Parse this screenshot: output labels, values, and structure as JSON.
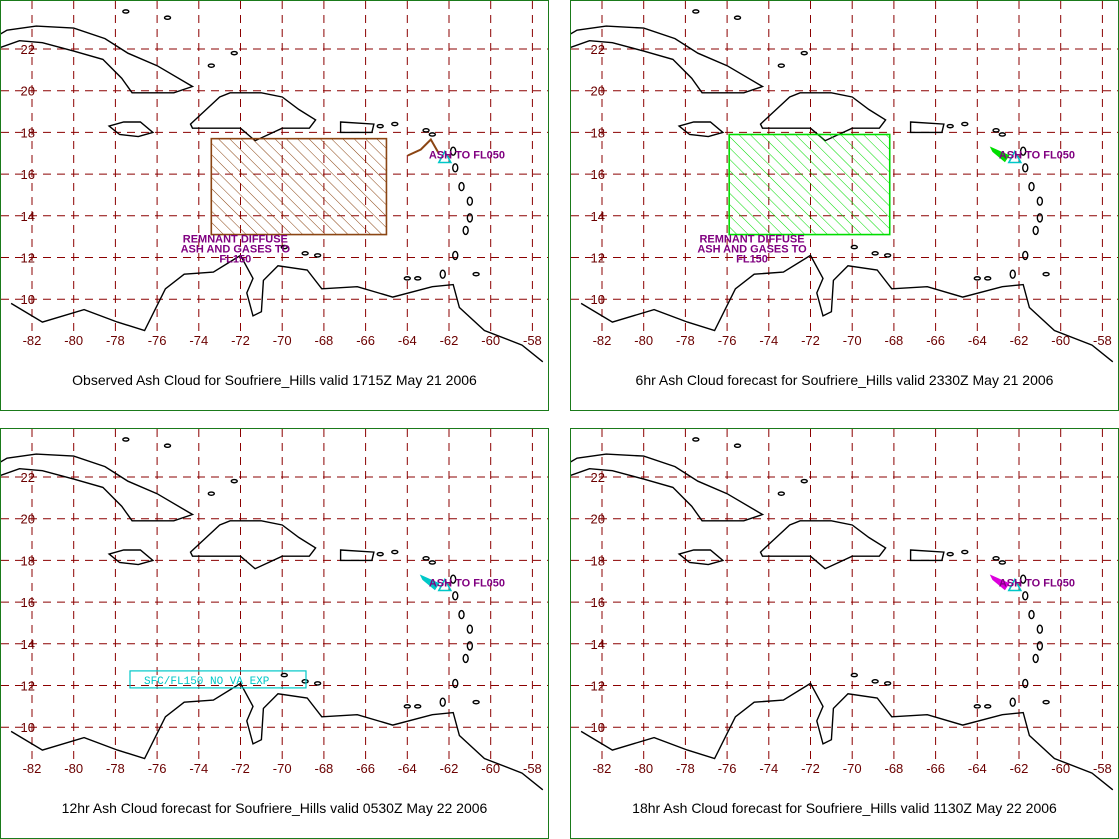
{
  "colors": {
    "panel_border": "#1a7a1a",
    "grid": "#8b0000",
    "tick_label": "#6b0000",
    "coast": "#000000",
    "label": "#800080",
    "volcano_marker": "#00c8c8",
    "observed_cloud": "#8b4513",
    "forecast_6hr_cloud": "#00dd00",
    "forecast_12hr_cloud": "#00c8c8",
    "forecast_18hr_cloud": "#dd00dd"
  },
  "axes": {
    "lon_labels": [
      "-82",
      "-80",
      "-78",
      "-76",
      "-74",
      "-72",
      "-70",
      "-68",
      "-66",
      "-64",
      "-62",
      "-60",
      "-58"
    ],
    "lat_labels": [
      "22",
      "20",
      "18",
      "16",
      "14",
      "12",
      "10"
    ]
  },
  "panels": [
    {
      "caption": "Observed Ash Cloud for Soufriere_Hills valid 1715Z May 21 2006",
      "volcano_label": "ASH TO FL050",
      "area_label": [
        "REMNANT DIFFUSE",
        "ASH AND GASES TO",
        "FL150"
      ],
      "area_box": {
        "lon": [
          -73.4,
          -65.0
        ],
        "lat": [
          13.1,
          17.7
        ]
      },
      "cloud_color_key": "observed_cloud",
      "cloud_shape": "line"
    },
    {
      "caption": "6hr Ash Cloud forecast for Soufriere_Hills valid 2330Z May 21 2006",
      "volcano_label": "ASH TO FL050",
      "area_label": [
        "REMNANT DIFFUSE",
        "ASH AND GASES TO",
        "FL150"
      ],
      "area_box": {
        "lon": [
          -75.9,
          -68.2
        ],
        "lat": [
          13.1,
          17.9
        ]
      },
      "cloud_color_key": "forecast_6hr_cloud",
      "cloud_shape": "streak"
    },
    {
      "caption": "12hr Ash Cloud forecast for Soufriere_Hills valid 0530Z May 22 2006",
      "volcano_label": "ASH TO FL050",
      "area_label": [
        "SFC/FL150 NO VA EXP"
      ],
      "cloud_color_key": "forecast_12hr_cloud",
      "cloud_shape": "streak"
    },
    {
      "caption": "18hr Ash Cloud forecast for Soufriere_Hills valid 1130Z May 22 2006",
      "volcano_label": "ASH TO FL050",
      "area_label": [],
      "cloud_color_key": "forecast_18hr_cloud",
      "cloud_shape": "streak"
    }
  ]
}
